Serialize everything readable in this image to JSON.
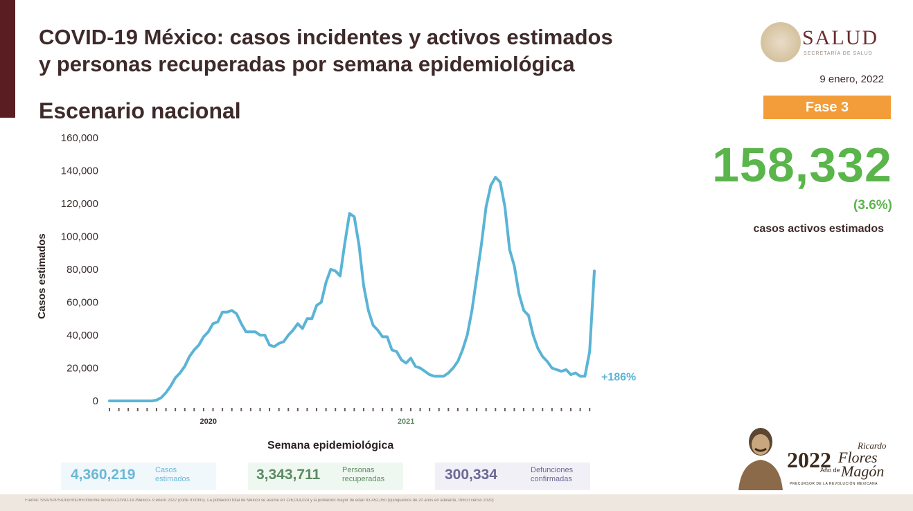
{
  "header": {
    "title_line1": "COVID-19 México: casos incidentes y activos estimados",
    "title_line2": "y personas recuperadas por semana epidemiológica",
    "subtitle": "Escenario nacional",
    "logo_text": "SALUD",
    "logo_subtext": "SECRETARÍA DE SALUD",
    "date": "9 enero, 2022",
    "phase": "Fase 3"
  },
  "highlight": {
    "value": "158,332",
    "percent": "(3.6%)",
    "label": "casos activos estimados",
    "color": "#5ab54b"
  },
  "stats": [
    {
      "value": "4,360,219",
      "label_line1": "Casos",
      "label_line2": "estimados"
    },
    {
      "value": "3,343,711",
      "label_line1": "Personas",
      "label_line2": "recuperadas"
    },
    {
      "value": "300,334",
      "label_line1": "Defunciones",
      "label_line2": "confirmadas"
    }
  ],
  "emblem": {
    "year": "2022",
    "ano": "Año de",
    "name_first": "Ricardo",
    "name_middle": "Flores",
    "name_last": "Magón",
    "sub": "PRECURSOR DE LA REVOLUCIÓN MEXICANA"
  },
  "footer": {
    "source": "Fuente: SSA/SPPS/DGE/InDRE/Informe técnico.COVID-19 /México- 9 enero 2022 (corte 9:00hrs). La población total de México se asume en 126,014,024 y la población mayor de edad 83,452,050 (quinquenios de 20 años en adelante, INEGI censo 2020)"
  },
  "chart_data": {
    "type": "line",
    "title": "",
    "xlabel": "Semana epidemiológica",
    "ylabel": "Casos estimados",
    "ylim": [
      0,
      160000
    ],
    "yticks": [
      "0",
      "20,000",
      "40,000",
      "60,000",
      "80,000",
      "100,000",
      "120,000",
      "140,000",
      "160,000"
    ],
    "year_labels": [
      "2020",
      "2021"
    ],
    "annotation": "+186%",
    "line_color": "#5ab4d6",
    "grid": false,
    "series": [
      {
        "values": [
          0,
          0,
          0,
          0,
          0,
          0,
          0,
          0,
          0,
          0,
          500,
          2000,
          5000,
          9000,
          14000,
          17000,
          21000,
          27000,
          31000,
          34000,
          39000,
          42000,
          47000,
          48000,
          54000,
          54000,
          55000,
          53000,
          47000,
          42000,
          42000,
          42000,
          40000,
          40000,
          34000,
          33000,
          35000,
          36000,
          40000,
          43000,
          47000,
          44000,
          50000,
          50000,
          58000,
          60000,
          72000,
          80000,
          79000,
          76000,
          96000,
          114000,
          112000,
          95000,
          70000,
          55000,
          46000,
          43000,
          39000,
          39000,
          31000,
          30000,
          25000,
          23000,
          26000,
          21000,
          20000,
          18000,
          16000,
          15000,
          15000,
          15000,
          17000,
          20000,
          24000,
          31000,
          40000,
          55000,
          75000,
          95000,
          118000,
          131000,
          136000,
          133000,
          118000,
          92000,
          82000,
          65000,
          55000,
          52000,
          40000,
          32000,
          27000,
          24000,
          20000,
          19000,
          18000,
          19000,
          16000,
          17000,
          15000,
          15000,
          30000,
          79000
        ]
      }
    ]
  }
}
